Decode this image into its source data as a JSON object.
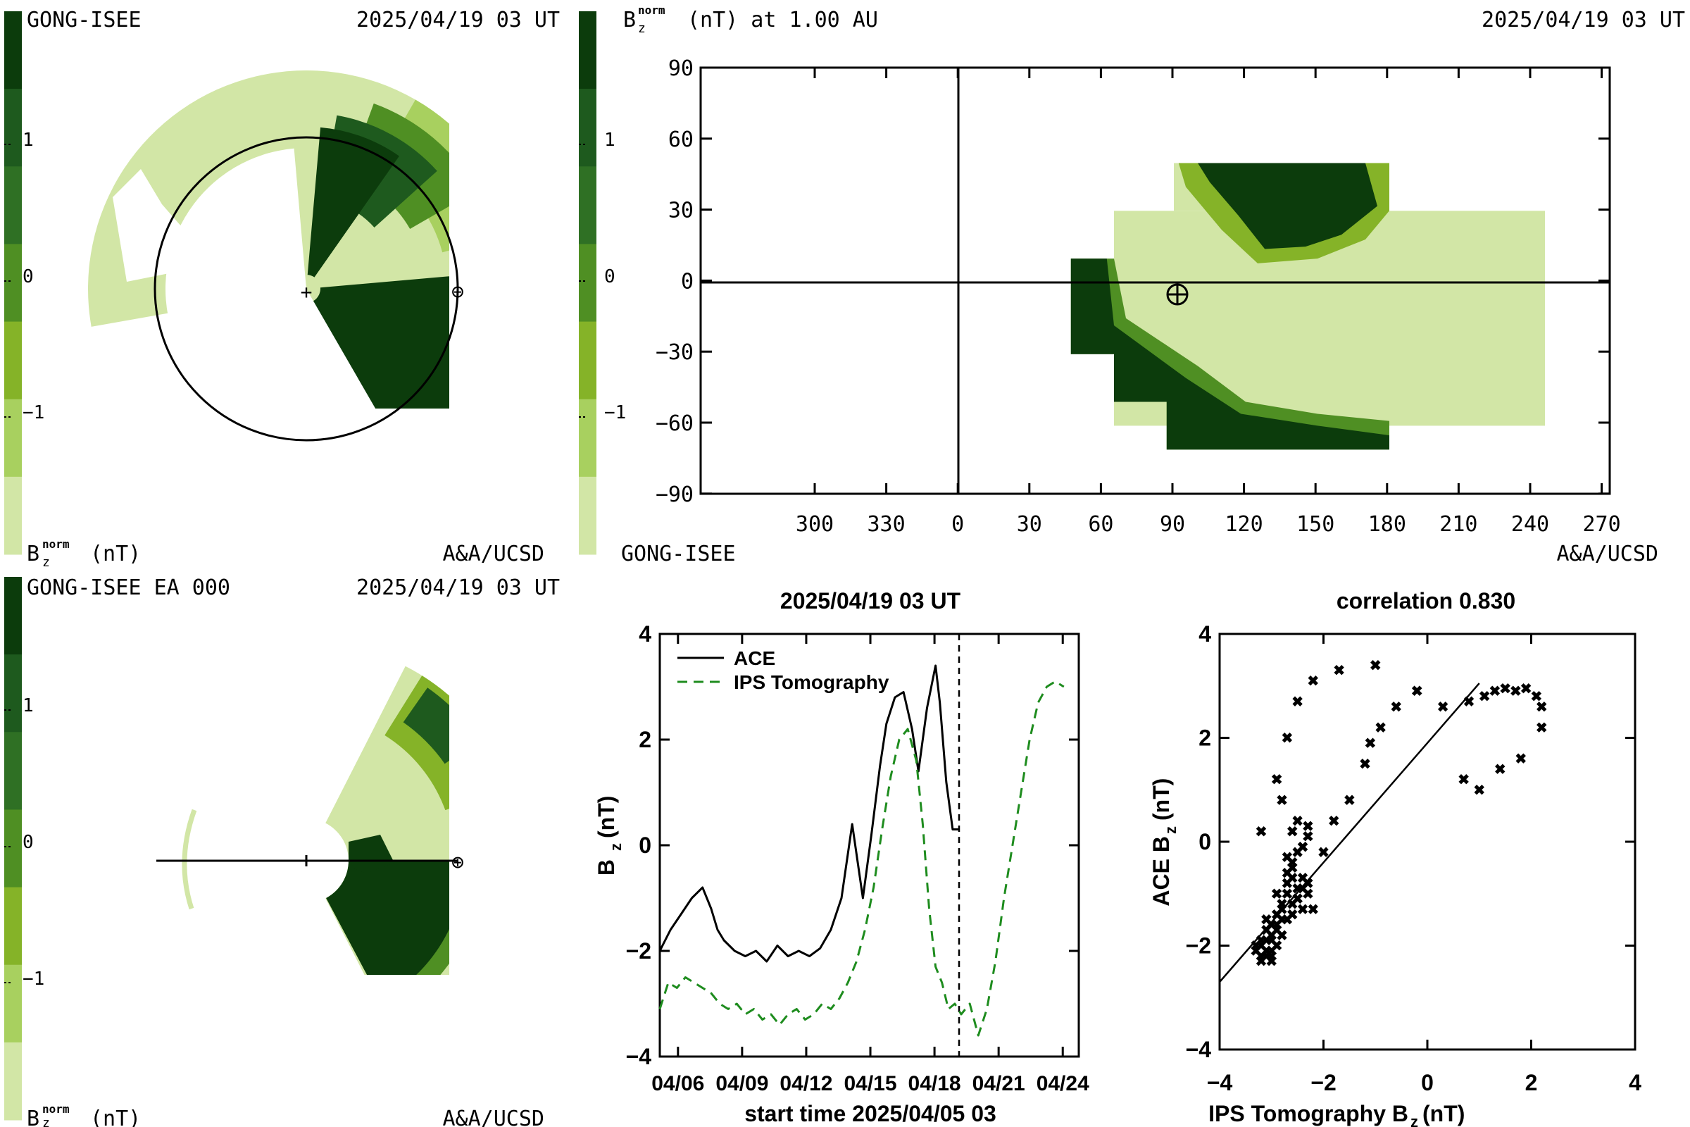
{
  "palette": {
    "levels": [
      "#d2e6a6",
      "#a8d05f",
      "#85b328",
      "#4f8f23",
      "#2f7024",
      "#1e5a1e",
      "#0c3c0c"
    ],
    "dark": "#0c3c0c",
    "light": "#d2e6a6",
    "ace": "#000000",
    "ips": "#1e8c1e"
  },
  "colorbar": {
    "ticks": [
      "1",
      "0",
      "−1"
    ],
    "label_main": "B",
    "label_sub": "z",
    "label_sup": "norm",
    "label_unit": "(nT)"
  },
  "panel_tl": {
    "title_left": "GONG-ISEE",
    "title_right": "2025/04/19 03 UT",
    "footer_right": "A&A/UCSD",
    "earth_symbol": "⊕",
    "sun_symbol": "+"
  },
  "panel_bl": {
    "title_left": "GONG-ISEE EA 000",
    "title_right": "2025/04/19 03 UT",
    "footer_right": "A&A/UCSD",
    "earth_symbol": "⊕"
  },
  "panel_tr": {
    "title_left_main": "B",
    "title_left_sub": "z",
    "title_left_sup": "norm",
    "title_left_rest": "(nT) at 1.00 AU",
    "title_right": "2025/04/19 03 UT",
    "footer_left": "GONG-ISEE",
    "footer_right": "A&A/UCSD",
    "earth_symbol": "⊕",
    "y_ticks": [
      "90",
      "60",
      "30",
      "0",
      "−30",
      "−60",
      "−90"
    ],
    "x_ticks": [
      "300",
      "330",
      "0",
      "30",
      "60",
      "90",
      "120",
      "150",
      "180",
      "210",
      "240",
      "270"
    ]
  },
  "chart_data": [
    {
      "type": "line",
      "title": "2025/04/19 03 UT",
      "xlabel": "start time 2025/04/05 03",
      "ylabel_main": "B",
      "ylabel_sub": "z",
      "ylabel_unit": "(nT)",
      "x_tick_labels": [
        "04/06",
        "04/09",
        "04/12",
        "04/15",
        "04/18",
        "04/21",
        "04/24"
      ],
      "y_tick_labels": [
        "4",
        "2",
        "0",
        "−2",
        "−4"
      ],
      "ylim": [
        -4,
        4
      ],
      "xlim_days": [
        0.0,
        19.6
      ],
      "now_marker_day": 14.0,
      "series": [
        {
          "name": "ACE",
          "style": "solid",
          "x": [
            0.0,
            0.5,
            1.0,
            1.5,
            2.0,
            2.4,
            2.7,
            3.0,
            3.5,
            4.0,
            4.5,
            5.0,
            5.5,
            6.0,
            6.5,
            7.0,
            7.5,
            8.0,
            8.5,
            9.0,
            9.5,
            9.9,
            10.3,
            10.6,
            11.0,
            11.4,
            11.8,
            12.1,
            12.5,
            12.9,
            13.1,
            13.4,
            13.7,
            14.0
          ],
          "y": [
            -2.0,
            -1.6,
            -1.3,
            -1.0,
            -0.8,
            -1.2,
            -1.6,
            -1.8,
            -2.0,
            -2.1,
            -2.0,
            -2.2,
            -1.9,
            -2.1,
            -2.0,
            -2.1,
            -1.95,
            -1.6,
            -1.0,
            0.4,
            -1.0,
            0.2,
            1.5,
            2.3,
            2.8,
            2.9,
            2.2,
            1.4,
            2.6,
            3.4,
            2.7,
            1.2,
            0.3,
            0.3
          ]
        },
        {
          "name": "IPS Tomography",
          "style": "dashed",
          "x": [
            0.0,
            0.4,
            0.8,
            1.2,
            1.6,
            2.0,
            2.4,
            2.8,
            3.2,
            3.6,
            4.0,
            4.4,
            4.8,
            5.2,
            5.6,
            6.0,
            6.4,
            6.8,
            7.2,
            7.6,
            8.0,
            8.4,
            8.8,
            9.2,
            9.6,
            10.0,
            10.4,
            10.8,
            11.2,
            11.6,
            12.0,
            12.3,
            12.6,
            12.9,
            13.2,
            13.5,
            13.8,
            14.1,
            14.5,
            14.9,
            15.3,
            15.7,
            16.1,
            16.5,
            16.9,
            17.3,
            17.7,
            18.1,
            18.5,
            18.9
          ],
          "y": [
            -3.1,
            -2.6,
            -2.7,
            -2.5,
            -2.6,
            -2.7,
            -2.8,
            -3.0,
            -3.1,
            -3.0,
            -3.2,
            -3.1,
            -3.3,
            -3.2,
            -3.4,
            -3.2,
            -3.1,
            -3.3,
            -3.2,
            -3.0,
            -3.1,
            -2.9,
            -2.6,
            -2.2,
            -1.6,
            -0.8,
            0.3,
            1.3,
            2.0,
            2.2,
            1.6,
            0.4,
            -1.2,
            -2.3,
            -2.6,
            -3.1,
            -3.0,
            -3.2,
            -3.0,
            -3.6,
            -3.1,
            -2.2,
            -1.0,
            0.0,
            1.0,
            2.0,
            2.7,
            3.0,
            3.1,
            3.0
          ]
        }
      ]
    },
    {
      "type": "scatter",
      "title": "correlation 0.830",
      "xlabel_main": "IPS Tomography B",
      "xlabel_sub": "z",
      "xlabel_unit": "(nT)",
      "ylabel_main": "ACE B",
      "ylabel_sub": "z",
      "ylabel_unit": "(nT)",
      "x_tick_labels": [
        "−4",
        "−2",
        "0",
        "2",
        "4"
      ],
      "y_tick_labels": [
        "4",
        "2",
        "0",
        "−2",
        "−4"
      ],
      "xlim": [
        -4,
        4
      ],
      "ylim": [
        -4,
        4
      ],
      "points_x": [
        -3.2,
        -3.1,
        -3.3,
        -3.0,
        -3.2,
        -3.1,
        -2.9,
        -3.0,
        -3.2,
        -3.1,
        -3.3,
        -3.0,
        -2.9,
        -3.1,
        -3.2,
        -3.0,
        -2.8,
        -2.9,
        -3.1,
        -3.0,
        -2.7,
        -2.8,
        -2.9,
        -2.6,
        -2.7,
        -2.5,
        -2.4,
        -2.6,
        -2.5,
        -2.8,
        -2.7,
        -2.6,
        -2.4,
        -2.5,
        -2.3,
        -2.2,
        -2.9,
        -2.7,
        -2.6,
        -2.5,
        -2.4,
        -3.0,
        -2.8,
        -2.7,
        -2.6,
        -2.4,
        -2.3,
        -2.3,
        -3.2,
        -2.9,
        -2.6,
        -2.5,
        -2.4,
        -1.8,
        -1.5,
        -1.2,
        -1.1,
        -0.9,
        -0.6,
        -0.2,
        0.3,
        0.8,
        1.1,
        1.3,
        1.5,
        1.7,
        1.9,
        2.1,
        2.2,
        2.2,
        1.8,
        1.4,
        1.0,
        0.7,
        -2.7,
        -2.5,
        -2.2,
        -1.7,
        -1.0,
        -0.2,
        -2.8,
        -2.3,
        -2.0
      ],
      "points_y": [
        -2.2,
        -2.1,
        -2.0,
        -2.2,
        -2.3,
        -1.9,
        -2.0,
        -1.8,
        -1.9,
        -2.2,
        -2.1,
        -2.3,
        -1.7,
        -1.7,
        -2.0,
        -1.9,
        -1.8,
        -1.6,
        -1.5,
        -2.1,
        -1.5,
        -1.3,
        -1.4,
        -1.2,
        -1.0,
        -0.9,
        -1.3,
        -1.4,
        -1.1,
        -1.2,
        -0.8,
        -0.7,
        -0.9,
        -1.1,
        -1.0,
        -1.3,
        -1.0,
        -0.6,
        -0.4,
        -0.2,
        -0.1,
        -1.6,
        -1.5,
        -0.3,
        -0.5,
        -0.7,
        -0.8,
        0.1,
        0.2,
        1.2,
        0.2,
        0.4,
        -0.1,
        0.4,
        0.8,
        1.5,
        1.9,
        2.2,
        2.6,
        2.9,
        2.6,
        2.7,
        2.8,
        2.9,
        2.95,
        2.9,
        2.95,
        2.8,
        2.6,
        2.2,
        1.6,
        1.4,
        1.0,
        1.2,
        2.0,
        2.7,
        3.1,
        3.3,
        3.4,
        2.9,
        0.8,
        0.3,
        -0.2
      ],
      "fit": {
        "x": [
          -4.0,
          1.0
        ],
        "y": [
          -2.7,
          3.05
        ]
      }
    }
  ]
}
